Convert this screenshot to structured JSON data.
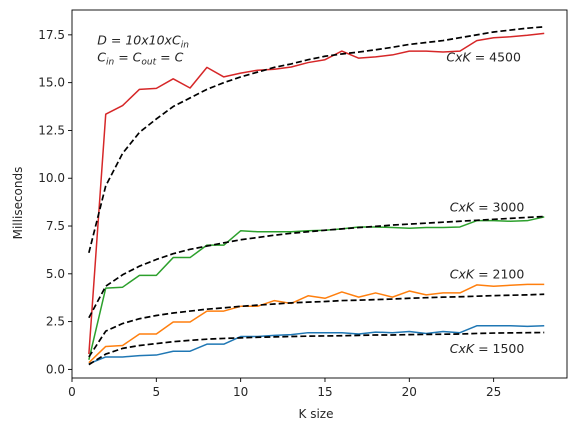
{
  "chart_data": {
    "type": "line",
    "xlabel": "K size",
    "ylabel": "Milliseconds",
    "xlim": [
      0,
      29.35
    ],
    "ylim": [
      -0.45,
      18.8
    ],
    "xticks": [
      0,
      5,
      10,
      15,
      20,
      25
    ],
    "yticks": [
      0.0,
      2.5,
      5.0,
      7.5,
      10.0,
      12.5,
      15.0,
      17.5
    ],
    "xtick_labels": [
      "0",
      "5",
      "10",
      "15",
      "20",
      "25"
    ],
    "ytick_labels": [
      "0.0",
      "2.5",
      "5.0",
      "7.5",
      "10.0",
      "12.5",
      "15.0",
      "17.5"
    ],
    "grid": false,
    "x": [
      1,
      2,
      3,
      4,
      5,
      6,
      7,
      8,
      9,
      10,
      11,
      12,
      13,
      14,
      15,
      16,
      17,
      18,
      19,
      20,
      21,
      22,
      23,
      24,
      25,
      26,
      27,
      28
    ],
    "series": [
      {
        "key": "s1500",
        "style": "solid",
        "color": "#1f77b4",
        "values": [
          0.3,
          0.65,
          0.65,
          0.72,
          0.75,
          0.95,
          0.95,
          1.32,
          1.32,
          1.72,
          1.72,
          1.78,
          1.82,
          1.92,
          1.92,
          1.92,
          1.85,
          1.95,
          1.92,
          1.98,
          1.88,
          1.98,
          1.92,
          2.28,
          2.28,
          2.28,
          2.25,
          2.28
        ]
      },
      {
        "key": "s2100",
        "style": "solid",
        "color": "#ff7f0e",
        "values": [
          0.35,
          1.2,
          1.25,
          1.85,
          1.85,
          2.48,
          2.48,
          3.05,
          3.05,
          3.3,
          3.3,
          3.6,
          3.45,
          3.85,
          3.72,
          4.05,
          3.78,
          4.0,
          3.78,
          4.1,
          3.9,
          4.0,
          4.0,
          4.42,
          4.35,
          4.4,
          4.45,
          4.45
        ]
      },
      {
        "key": "s3000",
        "style": "solid",
        "color": "#2ca02c",
        "values": [
          0.5,
          4.25,
          4.3,
          4.92,
          4.92,
          5.85,
          5.85,
          6.5,
          6.5,
          7.25,
          7.2,
          7.2,
          7.2,
          7.25,
          7.28,
          7.35,
          7.45,
          7.45,
          7.42,
          7.38,
          7.42,
          7.42,
          7.45,
          7.78,
          7.78,
          7.75,
          7.78,
          7.98
        ]
      },
      {
        "key": "s4500",
        "style": "solid",
        "color": "#d62728",
        "values": [
          0.8,
          13.35,
          13.8,
          14.65,
          14.7,
          15.2,
          14.72,
          15.8,
          15.3,
          15.5,
          15.65,
          15.7,
          15.82,
          16.05,
          16.2,
          16.65,
          16.28,
          16.35,
          16.45,
          16.65,
          16.65,
          16.6,
          16.65,
          17.2,
          17.35,
          17.4,
          17.48,
          17.58
        ]
      },
      {
        "key": "f1500",
        "style": "dashed",
        "color": "#000000",
        "values": [
          0.25,
          0.8,
          1.1,
          1.25,
          1.35,
          1.45,
          1.52,
          1.58,
          1.62,
          1.65,
          1.68,
          1.7,
          1.72,
          1.74,
          1.75,
          1.76,
          1.78,
          1.8,
          1.8,
          1.82,
          1.83,
          1.84,
          1.85,
          1.88,
          1.9,
          1.91,
          1.92,
          1.93
        ]
      },
      {
        "key": "f2100",
        "style": "dashed",
        "color": "#000000",
        "values": [
          0.65,
          2.0,
          2.4,
          2.65,
          2.82,
          2.95,
          3.05,
          3.15,
          3.22,
          3.3,
          3.36,
          3.42,
          3.48,
          3.52,
          3.55,
          3.6,
          3.62,
          3.65,
          3.68,
          3.72,
          3.75,
          3.78,
          3.8,
          3.83,
          3.86,
          3.88,
          3.9,
          3.93
        ]
      },
      {
        "key": "f3000",
        "style": "dashed",
        "color": "#000000",
        "values": [
          2.7,
          4.35,
          4.95,
          5.4,
          5.75,
          6.05,
          6.28,
          6.45,
          6.62,
          6.78,
          6.9,
          7.02,
          7.12,
          7.2,
          7.28,
          7.35,
          7.42,
          7.48,
          7.55,
          7.6,
          7.65,
          7.7,
          7.75,
          7.8,
          7.85,
          7.9,
          7.95,
          8.0
        ]
      },
      {
        "key": "f4500",
        "style": "dashed",
        "color": "#000000",
        "values": [
          6.1,
          9.6,
          11.3,
          12.4,
          13.1,
          13.75,
          14.2,
          14.65,
          15.0,
          15.3,
          15.55,
          15.8,
          15.98,
          16.2,
          16.38,
          16.5,
          16.6,
          16.72,
          16.85,
          17.0,
          17.1,
          17.2,
          17.35,
          17.5,
          17.65,
          17.75,
          17.85,
          17.92
        ]
      }
    ],
    "annotations": [
      {
        "key": "eq_d",
        "base": "D = 10x10xC",
        "sub": "in",
        "x": 1.5,
        "y": 17.0
      },
      {
        "key": "eq_c",
        "base": "C",
        "sub": "in",
        "mid": " = C",
        "sub2": "out",
        "tail": " = C",
        "x": 1.5,
        "y": 16.1
      },
      {
        "key": "ck4500",
        "base": "CxK",
        "value": " = 4500",
        "x": 22.2,
        "y": 16.1
      },
      {
        "key": "ck3000",
        "base": "CxK",
        "value": " = 3000",
        "x": 22.4,
        "y": 8.25
      },
      {
        "key": "ck2100",
        "base": "CxK",
        "value": " = 2100",
        "x": 22.4,
        "y": 4.75
      },
      {
        "key": "ck1500",
        "base": "CxK",
        "value": " = 1500",
        "x": 22.4,
        "y": 0.85
      }
    ]
  }
}
